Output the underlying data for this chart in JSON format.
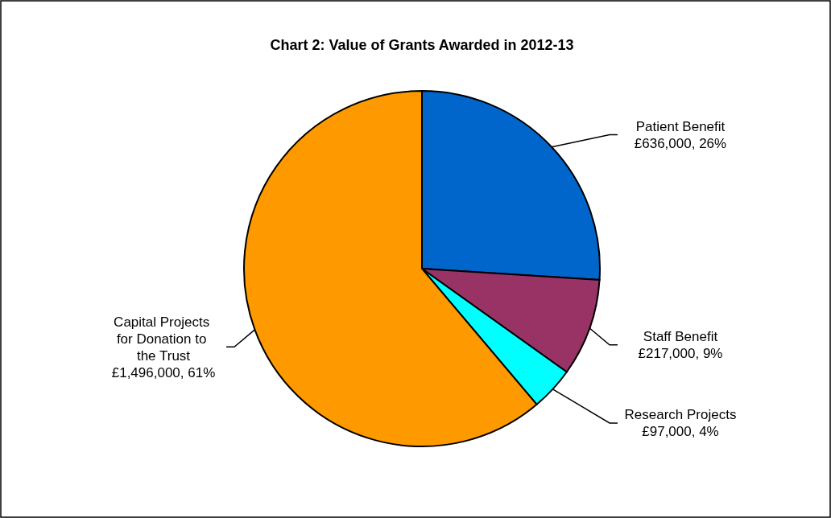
{
  "chart_data": {
    "type": "pie",
    "title": "Chart 2: Value of Grants Awarded in 2012-13",
    "categories": [
      "Patient Benefit",
      "Staff Benefit",
      "Research Projects",
      "Capital Projects for Donation to the Trust"
    ],
    "values": [
      636000,
      217000,
      97000,
      1496000
    ],
    "colors": [
      "#0066cc",
      "#993366",
      "#00ffff",
      "#ff9900"
    ],
    "value_labels": [
      "£636,000, 26%",
      "£217,000, 9%",
      "£97,000, 4%",
      "£1,496,000, 61%"
    ]
  }
}
